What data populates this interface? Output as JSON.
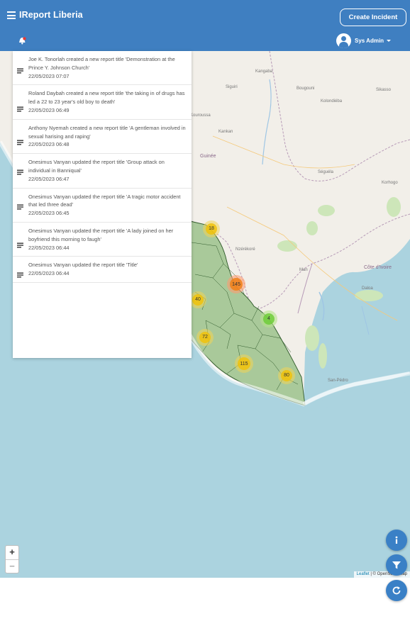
{
  "header": {
    "title": "IReport Liberia",
    "create_label": "Create Incident",
    "user_name": "Sys Admin"
  },
  "activity": [
    {
      "text": "Joe K. Tonorlah  created a new report title 'Demonstration at the Prince Y. Johnson Church'",
      "time": "22/05/2023 07:07"
    },
    {
      "text": "Roland Daybah created a new report title 'the taking in of drugs has led a 22 to 23 year's old boy to death'",
      "time": "22/05/2023 06:49"
    },
    {
      "text": "Anthony Nyemah created a new report title 'A gentleman involved in sexual harising and raping'",
      "time": "22/05/2023 06:48"
    },
    {
      "text": "Onesimus Vanyan  updated the report title 'Group attack on individual in Banniqual'",
      "time": "22/05/2023 06:47"
    },
    {
      "text": "Onesimus Vanyan  updated the report title 'A tragic motor accident that led three dead'",
      "time": "22/05/2023 06:45"
    },
    {
      "text": "Onesimus Vanyan  updated the report title 'A lady joined on her boyfriend this morning to faugh'",
      "time": "22/05/2023 06:44"
    },
    {
      "text": "Onesimus Vanyan  updated the report title 'Title'",
      "time": "22/05/2023 06:44"
    }
  ],
  "map": {
    "labels": {
      "kangaba": "Kangaba",
      "siguiri": "Siguiri",
      "bougouni": "Bougouni",
      "sikasso": "Sikasso",
      "kolondieba": "Kolondiéba",
      "kouroussa": "Kouroussa",
      "kankan": "Kankan",
      "guinee": "Guinée",
      "seguela": "Séguéla",
      "korhogo": "Korhogo",
      "nzerekore": "Nzérékoré",
      "cote_divoire": "Côte d'Ivoire",
      "man": "Man",
      "daloa": "Daloa",
      "sanpedro": "San-Pédro"
    },
    "clusters": [
      {
        "label": "18",
        "color": "yellow"
      },
      {
        "label": "145",
        "color": "orange"
      },
      {
        "label": "40",
        "color": "yellow"
      },
      {
        "label": "4",
        "color": "green"
      },
      {
        "label": "72",
        "color": "yellow"
      },
      {
        "label": "115",
        "color": "yellow"
      },
      {
        "label": "80",
        "color": "yellow"
      }
    ],
    "zoom_in": "+",
    "zoom_out": "−",
    "attribution_leaflet": "Leaflet",
    "attribution_rest": "| © OpenStreetMap"
  },
  "icons": {
    "menu": "menu-icon",
    "notification": "bell-icon",
    "avatar": "account-circle-icon",
    "document": "document-lines-icon",
    "info": "info-icon",
    "filter": "filter-icon",
    "refresh": "refresh-icon"
  },
  "colors": {
    "header": "#3f7fc1",
    "fab": "#3a80c6",
    "sea": "#abd3df",
    "land": "#f2efe9",
    "liberia": "#a9c99a"
  }
}
